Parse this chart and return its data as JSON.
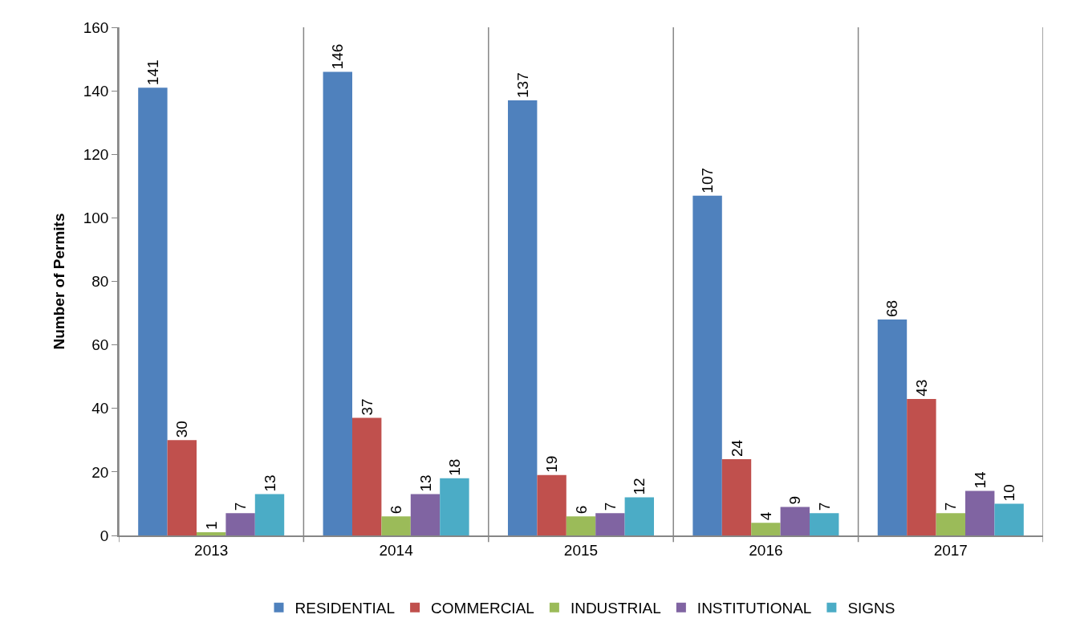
{
  "chart_data": {
    "type": "bar",
    "ylabel": "Number of Permits",
    "categories": [
      "2013",
      "2014",
      "2015",
      "2016",
      "2017"
    ],
    "series": [
      {
        "name": "RESIDENTIAL",
        "color": "#4f81bd",
        "values": [
          141,
          146,
          137,
          107,
          68
        ]
      },
      {
        "name": "COMMERCIAL",
        "color": "#c0504d",
        "values": [
          30,
          37,
          19,
          24,
          43
        ]
      },
      {
        "name": "INDUSTRIAL",
        "color": "#9bbb59",
        "values": [
          1,
          6,
          6,
          4,
          7
        ]
      },
      {
        "name": "INSTITUTIONAL",
        "color": "#8064a2",
        "values": [
          7,
          13,
          7,
          9,
          14
        ]
      },
      {
        "name": "SIGNS",
        "color": "#4bacc6",
        "values": [
          13,
          18,
          12,
          7,
          10
        ]
      }
    ],
    "ylim": [
      0,
      160
    ],
    "yticks": [
      0,
      20,
      40,
      60,
      80,
      100,
      120,
      140,
      160
    ],
    "grid": "x",
    "legend": "bottom",
    "data_labels": true
  }
}
